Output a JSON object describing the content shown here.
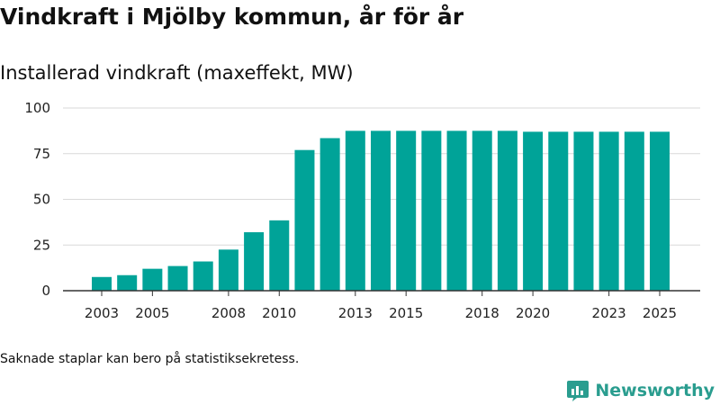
{
  "chart_data": {
    "type": "bar",
    "title": "Vindkraft i Mjölby kommun, år för år",
    "subtitle": "Installerad vindkraft (maxeffekt, MW)",
    "xlabel": "",
    "ylabel": "",
    "ylim": [
      0,
      100
    ],
    "y_ticks": [
      0,
      25,
      50,
      75,
      100
    ],
    "categories": [
      2003,
      2004,
      2005,
      2006,
      2007,
      2008,
      2009,
      2010,
      2011,
      2012,
      2013,
      2014,
      2015,
      2016,
      2017,
      2018,
      2019,
      2020,
      2021,
      2022,
      2023,
      2024,
      2025
    ],
    "x_tick_labels": [
      "2003",
      "2005",
      "2008",
      "2010",
      "2013",
      "2015",
      "2018",
      "2020",
      "2023",
      "2025"
    ],
    "values": [
      7.5,
      8.5,
      12,
      13.5,
      16,
      22.5,
      32,
      38.5,
      77,
      83.5,
      87.5,
      87.5,
      87.5,
      87.5,
      87.5,
      87.5,
      87.5,
      87,
      87,
      87,
      87,
      87,
      87
    ],
    "grid": true,
    "bar_color": "#00a398"
  },
  "note": "Saknade staplar kan bero på statistiksekretess.",
  "brand": {
    "name": "Newsworthy",
    "logo_icon": "newsworthy-logo-icon",
    "color": "#2a9d8f"
  }
}
